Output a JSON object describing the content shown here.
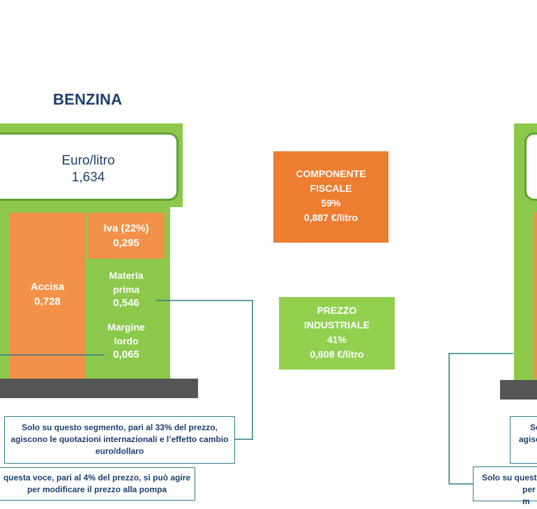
{
  "left_pump": {
    "title": "BENZINA",
    "price_unit": "Euro/litro",
    "price_value": "1,634",
    "accisa_label": "Accisa",
    "accisa_value": "0,728",
    "iva_label": "Iva (22%)",
    "iva_value": "0,295",
    "materia_label_1": "Materia",
    "materia_label_2": "prima",
    "materia_value": "0,546",
    "margine_label_1": "Margine",
    "margine_label_2": "lordo",
    "margine_value": "0,065"
  },
  "summary": {
    "fiscal_line1": "COMPONENTE",
    "fiscal_line2": "FISCALE",
    "fiscal_pct": "59%",
    "fiscal_value": "0,887 €/litro",
    "industrial_line1": "PREZZO",
    "industrial_line2": "INDUSTRIALE",
    "industrial_pct": "41%",
    "industrial_value": "0,608  €/litro"
  },
  "callouts": {
    "segment_line1": "Solo su questo segmento, pari al 33% del prezzo,",
    "segment_line2": "agiscono le quotazioni internazionali e l’effetto cambio",
    "segment_line3": "euro/dollaro",
    "voice_line1": "questa voce, pari al 4% del prezzo, si può agire",
    "voice_line2": "per modificare il prezzo alla pompa",
    "right_seg_line1": "So",
    "right_seg_line2": "agisc",
    "right_voice_line1": "Solo su questa",
    "right_voice_line2": "per m"
  },
  "colors": {
    "orange_segment": "#f2924a",
    "green_segment": "#8cc84b",
    "fiscal_box": "#ed7d31",
    "industrial_box": "#92d050",
    "title_text": "#1d3f6b"
  }
}
